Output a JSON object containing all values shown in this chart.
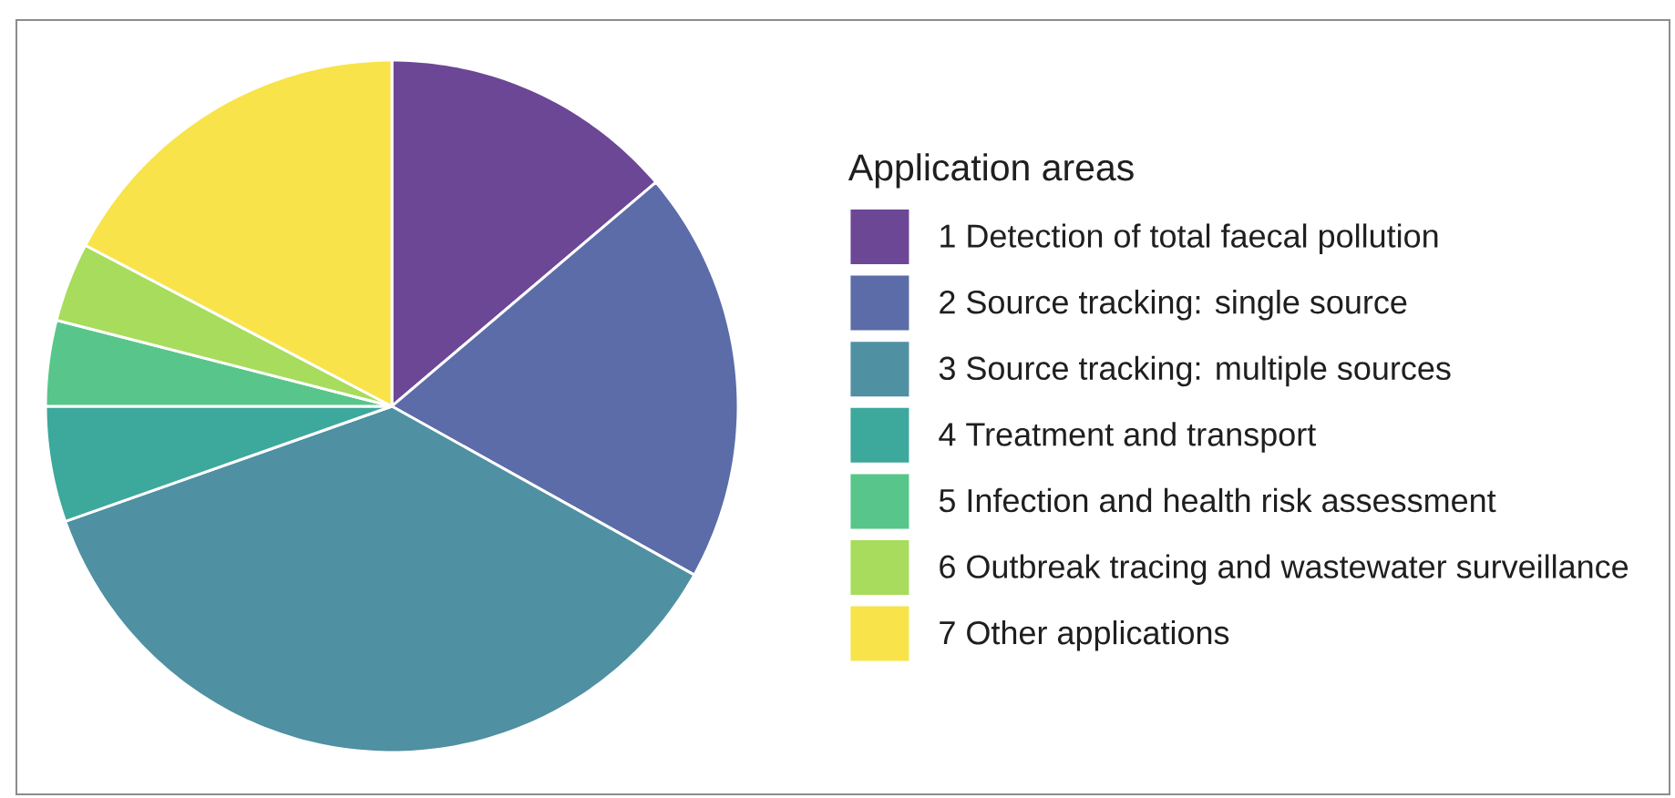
{
  "chart_data": {
    "type": "pie",
    "legend_title": "Application areas",
    "categories": [
      "1 Detection of total faecal pollution",
      "2 Source tracking: single source",
      "3 Source tracking: multiple sources",
      "4 Treatment and transport",
      "5 Infection and health risk assessment",
      "6 Outbreak tracing and wastewater surveillance",
      "7 Other applications"
    ],
    "values": [
      13.8,
      19.3,
      36.5,
      5.4,
      4.0,
      3.7,
      17.3
    ],
    "colors": [
      "#6c4796",
      "#5b6ca8",
      "#4f90a2",
      "#3da89c",
      "#58c68a",
      "#a8dc5c",
      "#f8e34a"
    ],
    "legend": "right"
  }
}
